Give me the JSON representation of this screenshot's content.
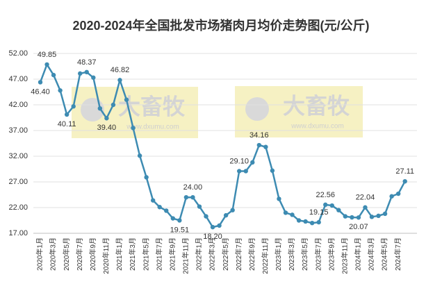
{
  "chart_data": {
    "type": "line",
    "title": "2020-2024年全国批发市场猪肉月均价走势图(元/公斤)",
    "watermark": {
      "brand": "大畜牧",
      "url": "www.dxumu.com"
    },
    "categories": [
      "2020年1月",
      null,
      "2020年3月",
      null,
      "2020年5月",
      null,
      "2020年7月",
      null,
      "2020年9月",
      null,
      "2020年11月",
      null,
      "2021年1月",
      null,
      "2021年3月",
      null,
      "2021年5月",
      null,
      "2021年7月",
      null,
      "2021年9月",
      null,
      "2021年11月",
      null,
      "2022年1月",
      null,
      "2022年3月",
      null,
      "2022年5月",
      null,
      "2022年7月",
      null,
      "2022年9月",
      null,
      "2022年11月",
      null,
      "2023年1月",
      null,
      "2023年3月",
      null,
      "2023年5月",
      null,
      "2023年7月",
      null,
      "2023年9月",
      null,
      "2023年11月",
      null,
      "2024年1月",
      null,
      "2024年3月",
      null,
      "2024年5月",
      null,
      "2024年7月",
      null
    ],
    "series": [
      {
        "name": null,
        "color": "#3d8bb2",
        "values": [
          46.4,
          49.85,
          47.8,
          44.8,
          40.11,
          41.7,
          48.1,
          48.37,
          47.3,
          41.3,
          39.4,
          42.0,
          46.82,
          43.0,
          37.5,
          32.1,
          27.9,
          23.4,
          22.1,
          21.4,
          19.9,
          19.51,
          24.0,
          24.0,
          22.2,
          20.3,
          18.2,
          18.5,
          20.5,
          21.5,
          29.1,
          29.1,
          30.8,
          34.16,
          33.8,
          29.2,
          23.7,
          21.0,
          20.6,
          19.5,
          19.3,
          19.0,
          19.15,
          22.56,
          22.4,
          21.5,
          20.3,
          20.1,
          20.07,
          22.04,
          20.2,
          20.4,
          20.8,
          24.2,
          24.7,
          27.11
        ],
        "value_labels": [
          "46.40",
          "49.85",
          null,
          null,
          "40.11",
          null,
          null,
          "48.37",
          null,
          null,
          "39.40",
          null,
          "46.82",
          null,
          null,
          null,
          null,
          null,
          null,
          null,
          null,
          "19.51",
          null,
          "24.00",
          null,
          null,
          "18.20",
          null,
          null,
          null,
          "29.10",
          null,
          null,
          "34.16",
          null,
          null,
          null,
          null,
          null,
          null,
          null,
          null,
          "19.15",
          "22.56",
          null,
          null,
          null,
          null,
          "20.07",
          "22.04",
          null,
          null,
          null,
          null,
          null,
          "27.11"
        ]
      }
    ],
    "ylim": [
      17,
      52
    ],
    "yticks": [
      {
        "value": 17,
        "label": "17.00"
      },
      {
        "value": 22,
        "label": "22.00"
      },
      {
        "value": 27,
        "label": "27.00"
      },
      {
        "value": 32,
        "label": "32.00"
      },
      {
        "value": 37,
        "label": "37.00"
      },
      {
        "value": 42,
        "label": "42.00"
      },
      {
        "value": 47,
        "label": "47.00"
      },
      {
        "value": 52,
        "label": "52.00"
      }
    ],
    "grid": true
  }
}
